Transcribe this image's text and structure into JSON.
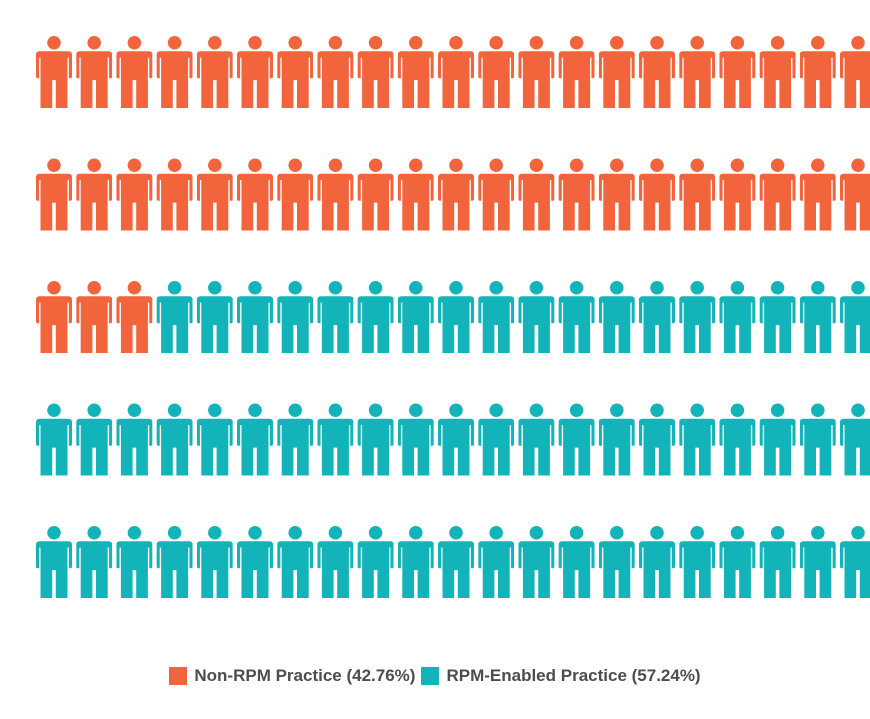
{
  "chart_data": {
    "type": "pictograph",
    "icon": "person-icon",
    "total_icons": 105,
    "columns": 21,
    "rows": 5,
    "series": [
      {
        "name": "Non-RPM Practice (42.76%)",
        "percent": 42.76,
        "count": 45,
        "color": "#f2643c"
      },
      {
        "name": "RPM-Enabled Practice (57.24%)",
        "percent": 57.24,
        "count": 60,
        "color": "#13b4b9"
      }
    ],
    "legend_position": "bottom-center"
  }
}
